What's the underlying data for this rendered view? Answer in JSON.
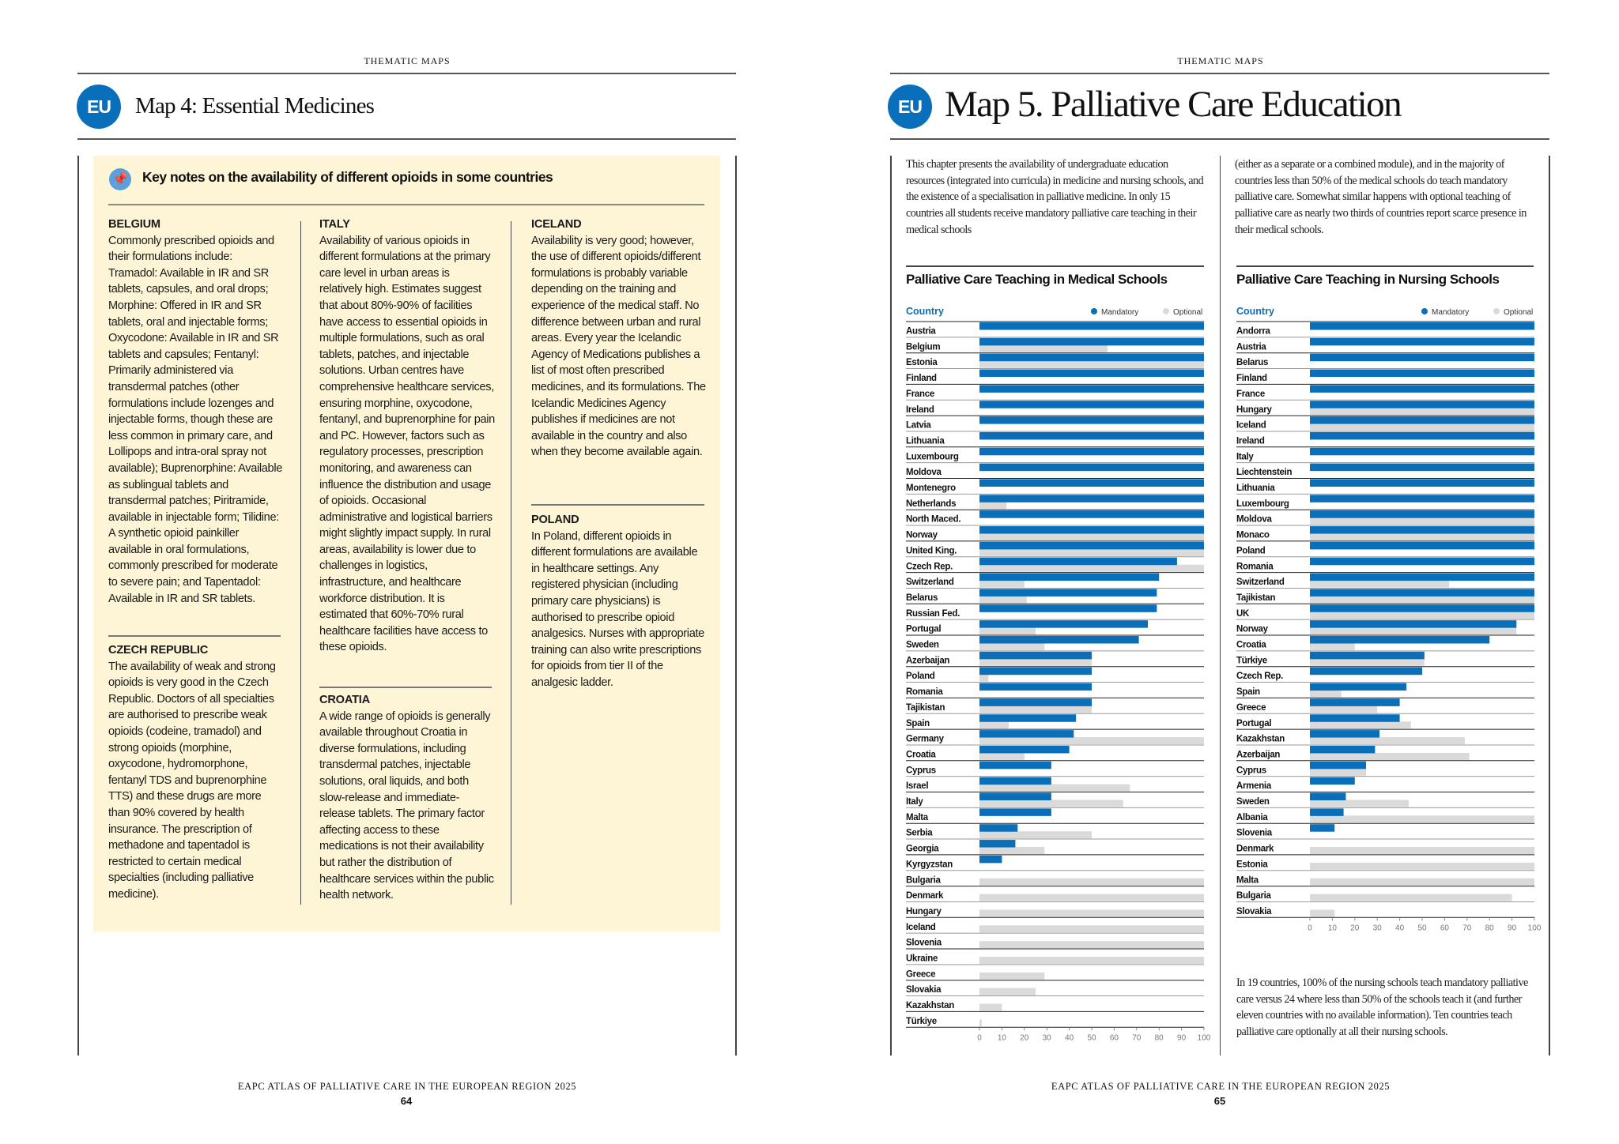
{
  "left_page": {
    "running_head": "THEMATIC MAPS",
    "badge": "EU",
    "title": "Map 4: Essential Medicines",
    "keynotes": {
      "icon": "pin-icon",
      "heading": "Key notes on the availability of different opioids in some countries",
      "notes": [
        {
          "country": "BELGIUM",
          "text": "Commonly prescribed opioids and their formulations include: Tramadol: Available in IR and SR tablets, capsules, and oral drops; Morphine: Offered in IR and SR tablets, oral and injectable forms; Oxycodone: Available in IR and SR tablets and capsules; Fentanyl: Primarily administered via transdermal patches  (other formulations include lozenges and injectable forms, though these are less common in primary care, and Lollipops and intra-oral spray not available); Buprenorphine: Available as sublingual tablets and transdermal patches;  Piritramide, available in injectable form; Tilidine: A synthetic opioid painkiller available in oral formulations, commonly prescribed for moderate to severe pain; and Tapentadol: Available in IR and SR tablets."
        },
        {
          "country": "CZECH REPUBLIC",
          "text": "The availability of weak and strong opioids is very good in the Czech Republic. Doctors of all specialties are authorised to prescribe weak opioids (codeine, tramadol) and strong opioids (morphine, oxycodone, hydromorphone, fentanyl TDS and buprenorphine TTS) and these drugs are more than 90% covered by health insurance. The prescription of methadone and tapentadol is restricted to certain medical specialties (including palliative medicine)."
        },
        {
          "country": "ITALY",
          "text": "Availability of various opioids in different formulations at the primary care level in urban areas is relatively high. Estimates suggest that about 80%-90% of facilities have access to essential opioids in multiple formulations, such as oral tablets, patches, and injectable solutions. Urban centres have comprehensive healthcare services, ensuring morphine, oxycodone, fentanyl, and buprenorphine for pain and PC. However, factors such as regulatory processes, prescription monitoring, and awareness can influence the distribution and usage of opioids. Occasional administrative and logistical barriers might slightly impact supply. In rural areas, availability is lower due to challenges in logistics, infrastructure, and healthcare workforce distribution. It is estimated that 60%-70% rural healthcare facilities have access to these opioids."
        },
        {
          "country": "CROATIA",
          "text": "A wide range of opioids is generally available throughout Croatia in diverse formulations, including transdermal patches, injectable solutions, oral liquids, and both slow-release and immediate-release tablets. The primary factor affecting access to these medications is not their availability but rather the distribution of healthcare services within the public health network."
        },
        {
          "country": "ICELAND",
          "text": "Availability is very good; however, the use of different opioids/different formulations is probably variable depending on the training and experience of the medical staff. No difference between urban and rural areas. Every year the Icelandic Agency of Medications publishes a list of most often prescribed medicines, and its formulations. The Icelandic Medicines Agency publishes if medicines are not available in the country and also when they become available again."
        },
        {
          "country": "POLAND",
          "text": "In Poland, different opioids in different formulations are available in healthcare settings.  Any registered physician (including primary care physicians) is authorised to prescribe opioid analgesics. Nurses with appropriate training can also write prescriptions for opioids from tier II of the analgesic ladder."
        }
      ]
    },
    "footer": "EAPC ATLAS OF PALLIATIVE CARE IN THE EUROPEAN REGION 2025",
    "page_number": "64"
  },
  "right_page": {
    "running_head": "THEMATIC MAPS",
    "badge": "EU",
    "title": "Map 5. Palliative Care Education",
    "intro_col1": "This chapter presents the availability of undergraduate education resources (integrated into curricula) in medicine and nursing schools, and the existence of a specialisation in palliative medicine. In only 15 countries all students receive mandatory palliative care teaching in their medical schools",
    "intro_col2": "(either as a separate or a combined module), and in the majority of countries less than 50% of the medical schools do teach mandatory palliative care. Somewhat similar happens with optional teaching of palliative care as nearly two thirds of countries report scarce presence in their medical schools.",
    "nursing_note": "In 19 countries, 100% of the nursing schools teach mandatory palliative care versus 24 where less than 50% of the schools teach it (and further eleven countries with no available information). Ten countries teach palliative care optionally at all their nursing schools.",
    "footer": "EAPC ATLAS OF PALLIATIVE CARE IN THE EUROPEAN REGION 2025",
    "page_number": "65"
  },
  "colors": {
    "brand_blue": "#0a6fba",
    "mandatory": "#0a6fba",
    "optional": "#dadada",
    "box_bg": "#fdf5d6"
  },
  "chart_data": [
    {
      "type": "bar",
      "orientation": "horizontal",
      "title": "Palliative Care Teaching in Medical Schools",
      "ylabel": "Country",
      "xlim": [
        0,
        100
      ],
      "xticks": [
        0,
        10,
        20,
        30,
        40,
        50,
        60,
        70,
        80,
        90,
        100
      ],
      "legend": {
        "placement": "top-right",
        "entries": [
          "Mandatory",
          "Optional"
        ]
      },
      "categories": [
        "Austria",
        "Belgium",
        "Estonia",
        "Finland",
        "France",
        "Ireland",
        "Latvia",
        "Lithuania",
        "Luxembourg",
        "Moldova",
        "Montenegro",
        "Netherlands",
        "North Maced.",
        "Norway",
        "United King.",
        "Czech Rep.",
        "Switzerland",
        "Belarus",
        "Russian Fed.",
        "Portugal",
        "Sweden",
        "Azerbaijan",
        "Poland",
        "Romania",
        "Tajikistan",
        "Spain",
        "Germany",
        "Croatia",
        "Cyprus",
        "Israel",
        "Italy",
        "Malta",
        "Serbia",
        "Georgia",
        "Kyrgyzstan",
        "Bulgaria",
        "Denmark",
        "Hungary",
        "Iceland",
        "Slovenia",
        "Ukraine",
        "Greece",
        "Slovakia",
        "Kazakhstan",
        "Türkiye"
      ],
      "series": [
        {
          "name": "Mandatory",
          "values": [
            100,
            100,
            100,
            100,
            100,
            100,
            100,
            100,
            100,
            100,
            100,
            100,
            100,
            100,
            100,
            88,
            80,
            79,
            79,
            75,
            71,
            50,
            50,
            50,
            50,
            43,
            42,
            40,
            32,
            32,
            32,
            32,
            17,
            16,
            10,
            0,
            0,
            0,
            0,
            0,
            0,
            0,
            0,
            0,
            0
          ]
        },
        {
          "name": "Optional",
          "values": [
            0,
            57,
            100,
            0,
            0,
            0,
            0,
            0,
            0,
            0,
            0,
            12,
            0,
            100,
            100,
            100,
            20,
            21,
            0,
            25,
            29,
            50,
            4,
            0,
            50,
            13,
            100,
            20,
            0,
            67,
            64,
            0,
            50,
            29,
            0,
            100,
            100,
            100,
            100,
            100,
            100,
            29,
            25,
            10,
            1
          ]
        }
      ]
    },
    {
      "type": "bar",
      "orientation": "horizontal",
      "title": "Palliative Care Teaching in Nursing Schools",
      "ylabel": "Country",
      "xlim": [
        0,
        100
      ],
      "xticks": [
        0,
        10,
        20,
        30,
        40,
        50,
        60,
        70,
        80,
        90,
        100
      ],
      "legend": {
        "placement": "top-right",
        "entries": [
          "Mandatory",
          "Optional"
        ]
      },
      "categories": [
        "Andorra",
        "Austria",
        "Belarus",
        "Finland",
        "France",
        "Hungary",
        "Iceland",
        "Ireland",
        "Italy",
        "Liechtenstein",
        "Lithuania",
        "Luxembourg",
        "Moldova",
        "Monaco",
        "Poland",
        "Romania",
        "Switzerland",
        "Tajikistan",
        "UK",
        "Norway",
        "Croatia",
        "Türkiye",
        "Czech Rep.",
        "Spain",
        "Greece",
        "Portugal",
        "Kazakhstan",
        "Azerbaijan",
        "Cyprus",
        "Armenia",
        "Sweden",
        "Albania",
        "Slovenia",
        "Denmark",
        "Estonia",
        "Malta",
        "Bulgaria",
        "Slovakia"
      ],
      "series": [
        {
          "name": "Mandatory",
          "values": [
            100,
            100,
            100,
            100,
            100,
            100,
            100,
            100,
            100,
            100,
            100,
            100,
            100,
            100,
            100,
            100,
            100,
            100,
            100,
            92,
            80,
            51,
            50,
            43,
            40,
            40,
            31,
            29,
            25,
            20,
            16,
            15,
            11,
            0,
            0,
            0,
            0,
            0
          ]
        },
        {
          "name": "Optional",
          "values": [
            0,
            0,
            0,
            0,
            0,
            100,
            100,
            0,
            0,
            0,
            0,
            0,
            100,
            100,
            0,
            0,
            62,
            100,
            100,
            92,
            20,
            51,
            0,
            14,
            30,
            45,
            69,
            71,
            25,
            0,
            44,
            100,
            0,
            100,
            100,
            100,
            90,
            11
          ]
        }
      ]
    }
  ]
}
